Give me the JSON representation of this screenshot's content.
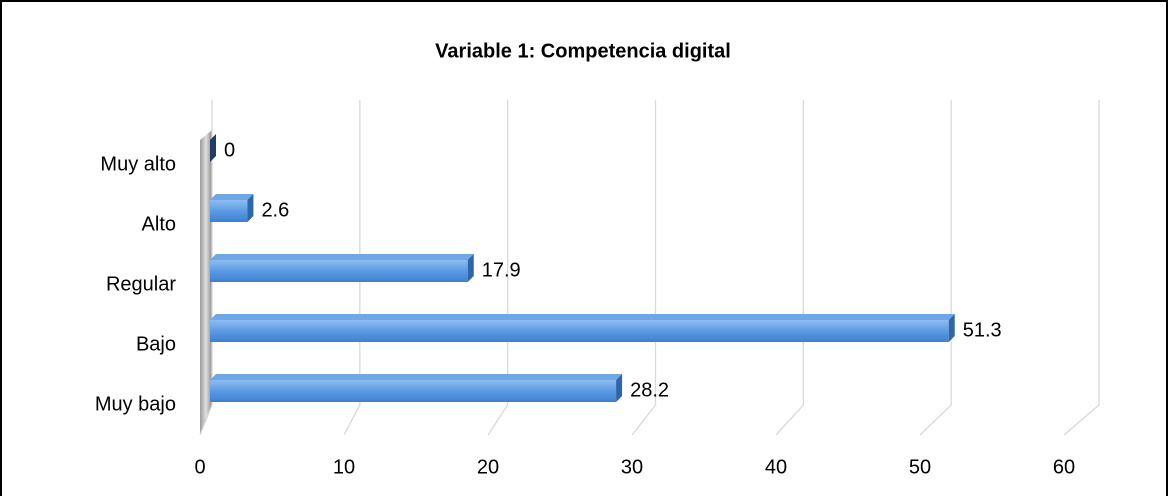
{
  "chart_data": {
    "type": "bar",
    "orientation": "horizontal",
    "title": "Variable 1: Competencia digital",
    "categories": [
      "Muy bajo",
      "Bajo",
      "Regular",
      "Alto",
      "Muy alto"
    ],
    "values": [
      28.2,
      51.3,
      17.9,
      2.6,
      0
    ],
    "color": "#4a8ad6",
    "xlim": [
      0,
      60
    ],
    "xticks": [
      0,
      10,
      20,
      30,
      40,
      50,
      60
    ],
    "grid": true
  }
}
